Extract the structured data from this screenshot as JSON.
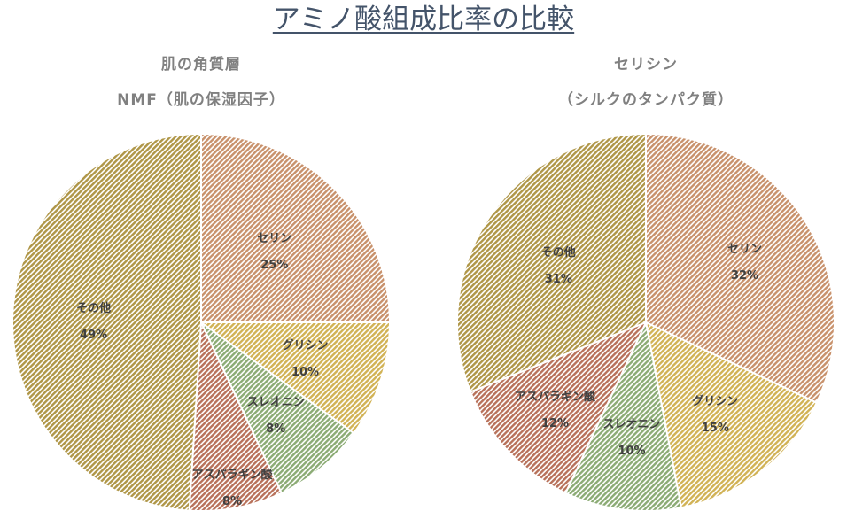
{
  "page_title": "アミノ酸組成比率の比較",
  "colors": {
    "serine": "#f4b183",
    "glycine": "#ffd966",
    "threonine": "#a9d18e",
    "asparagine": "#e08a6e",
    "other": "#d6b756",
    "title": "#44546a"
  },
  "chart_data": [
    {
      "type": "pie",
      "title_line1": "肌の角質層",
      "title_line2": "NMF（肌の保湿因子）",
      "labels": [
        "セリン",
        "グリシン",
        "スレオニン",
        "アスパラギン酸",
        "その他"
      ],
      "values": [
        25,
        10,
        8,
        8,
        49
      ],
      "value_labels": [
        "25%",
        "10%",
        "8%",
        "8%",
        "49%"
      ],
      "color_keys": [
        "serine",
        "glycine",
        "threonine",
        "asparagine",
        "other"
      ],
      "start_angle": "12 o'clock, clockwise"
    },
    {
      "type": "pie",
      "title_line1": "セリシン",
      "title_line2": "（シルクのタンパク質）",
      "labels": [
        "セリン",
        "グリシン",
        "スレオニン",
        "アスパラギン酸",
        "その他"
      ],
      "values": [
        32,
        15,
        10,
        12,
        31
      ],
      "value_labels": [
        "32%",
        "15%",
        "10%",
        "12%",
        "31%"
      ],
      "color_keys": [
        "serine",
        "glycine",
        "threonine",
        "asparagine",
        "other"
      ],
      "start_angle": "12 o'clock, clockwise"
    }
  ]
}
